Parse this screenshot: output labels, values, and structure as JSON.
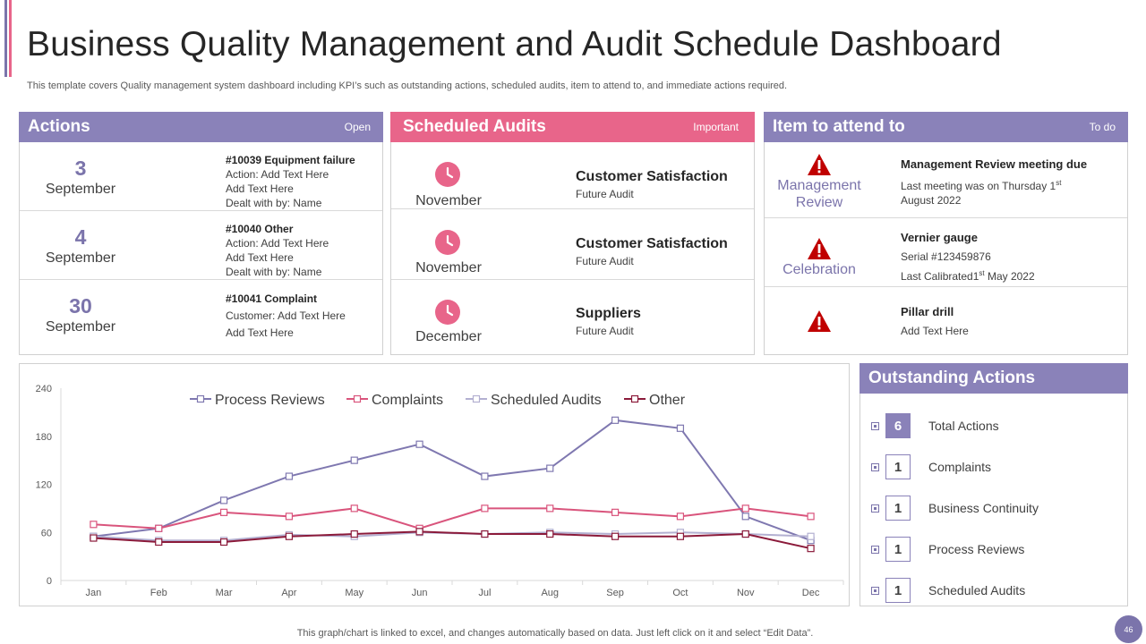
{
  "title": "Business Quality Management and Audit Schedule Dashboard",
  "subtitle": "This template covers Quality management system dashboard including KPI’s such as outstanding actions, scheduled audits, item to attend to, and immediate actions required.",
  "colors": {
    "purple": "#8a82b9",
    "pink": "#e8658a",
    "dark_red": "#8b1a3a",
    "warning_red": "#c00000"
  },
  "actions": {
    "title": "Actions",
    "tag": "Open",
    "rows": [
      {
        "day": "3",
        "month": "September",
        "heading": "#10039 Equipment failure",
        "lines": [
          "Action: Add Text Here",
          "Add Text Here",
          "Dealt with by: Name"
        ]
      },
      {
        "day": "4",
        "month": "September",
        "heading": "#10040 Other",
        "lines": [
          "Action: Add Text Here",
          "Add Text Here",
          "Dealt with by: Name"
        ]
      },
      {
        "day": "30",
        "month": "September",
        "heading": "#10041 Complaint",
        "lines": [
          "Customer:  Add Text Here",
          "Add Text Here"
        ]
      }
    ]
  },
  "audits": {
    "title": "Scheduled Audits",
    "tag": "Important",
    "rows": [
      {
        "icon": "clock-icon",
        "month": "November",
        "heading": "Customer Satisfaction",
        "sub": "Future Audit"
      },
      {
        "icon": "clock-icon",
        "month": "November",
        "heading": "Customer Satisfaction",
        "sub": "Future Audit"
      },
      {
        "icon": "clock-icon",
        "month": "December",
        "heading": "Suppliers",
        "sub": "Future Audit"
      }
    ]
  },
  "items": {
    "title": "Item to attend to",
    "tag": "To do",
    "rows": [
      {
        "icon": "warning-icon",
        "label": "Management Review",
        "heading": "Management Review meeting due",
        "line1": "Last meeting was on Thursday  1",
        "line1_sup": "st",
        "line2": "August 2022"
      },
      {
        "icon": "warning-icon",
        "label": "Celebration",
        "heading": "Vernier gauge",
        "line1": "Serial #123459876",
        "line2": "Last Calibrated1",
        "line2_sup": "st",
        "line2_tail": " May 2022"
      },
      {
        "icon": "warning-icon",
        "label": "",
        "heading": "Pillar drill",
        "line1": "Add Text  Here"
      }
    ]
  },
  "outstanding": {
    "title": "Outstanding Actions",
    "rows": [
      {
        "count": "6",
        "label": "Total Actions"
      },
      {
        "count": "1",
        "label": "Complaints"
      },
      {
        "count": "1",
        "label": "Business Continuity"
      },
      {
        "count": "1",
        "label": "Process Reviews"
      },
      {
        "count": "1",
        "label": "Scheduled Audits"
      }
    ]
  },
  "chart_data": {
    "type": "line",
    "title": "",
    "xlabel": "",
    "ylabel": "",
    "categories": [
      "Jan",
      "Feb",
      "Mar",
      "Apr",
      "May",
      "Jun",
      "Jul",
      "Aug",
      "Sep",
      "Oct",
      "Nov",
      "Dec"
    ],
    "yticks": [
      0,
      60,
      120,
      180,
      240
    ],
    "ylim": [
      0,
      240
    ],
    "legend_position": "top",
    "series": [
      {
        "name": "Process Reviews",
        "color": "#7f78b0",
        "values": [
          55,
          65,
          100,
          130,
          150,
          170,
          130,
          140,
          200,
          190,
          80,
          50
        ]
      },
      {
        "name": "Complaints",
        "color": "#d9547c",
        "values": [
          70,
          65,
          85,
          80,
          90,
          65,
          90,
          90,
          85,
          80,
          90,
          80
        ]
      },
      {
        "name": "Scheduled Audits",
        "color": "#b3b0d1",
        "values": [
          55,
          50,
          50,
          57,
          55,
          60,
          58,
          60,
          58,
          60,
          58,
          55
        ]
      },
      {
        "name": "Other",
        "color": "#8b1a3a",
        "values": [
          53,
          48,
          48,
          55,
          58,
          61,
          58,
          58,
          55,
          55,
          58,
          40
        ]
      }
    ]
  },
  "footer": "This graph/chart is linked to excel,  and changes automatically based on data. Just left click on it and select “Edit Data”.",
  "page_number": "46"
}
